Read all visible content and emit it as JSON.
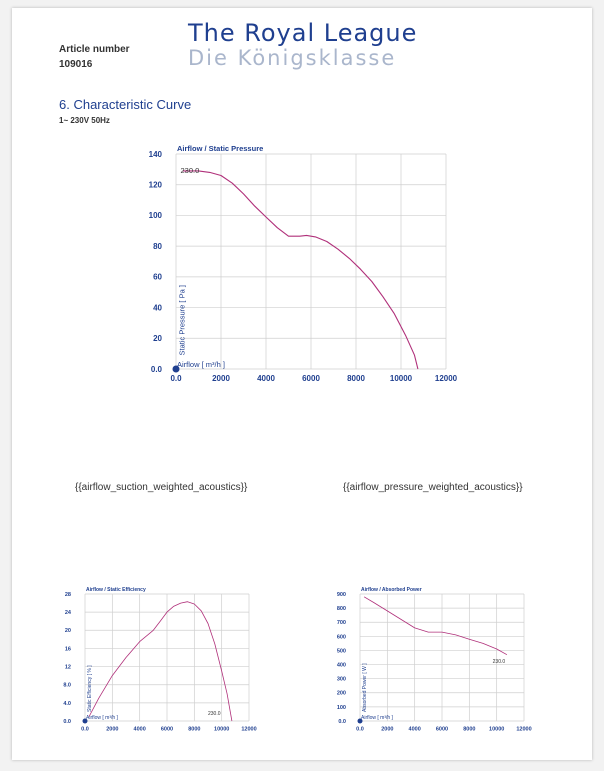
{
  "header": {
    "article_label": "Article number",
    "article_number": "109016",
    "brand_line1": "The Royal League",
    "brand_line2": "Die Königsklasse"
  },
  "section": {
    "title": "6. Characteristic Curve",
    "subtitle": "1~ 230V 50Hz"
  },
  "placeholders": {
    "suction": "{{airflow_suction_weighted_acoustics}}",
    "pressure": "{{airflow_pressure_weighted_acoustics}}"
  },
  "colors": {
    "brand": "#1f3f8f",
    "curve": "#b0307a",
    "grid": "#cfcfcf"
  },
  "chart_data": [
    {
      "type": "line",
      "title": "Airflow / Static Pressure",
      "xlabel": "Airflow [ m³/h ]",
      "ylabel": "Static Pressure [ Pa ]",
      "xlim": [
        0,
        12000
      ],
      "ylim": [
        0,
        140
      ],
      "xticks": [
        "0.0",
        "2000",
        "4000",
        "6000",
        "8000",
        "10000",
        "12000"
      ],
      "yticks": [
        "0.0",
        "20",
        "40",
        "60",
        "80",
        "100",
        "120",
        "140"
      ],
      "grid": true,
      "series": [
        {
          "name": "230.0",
          "x": [
            300,
            1000,
            1500,
            2000,
            2500,
            3000,
            3500,
            4000,
            4500,
            5000,
            5500,
            5800,
            6200,
            6700,
            7200,
            7700,
            8200,
            8700,
            9200,
            9700,
            10200,
            10600,
            10750
          ],
          "y": [
            129,
            129,
            128,
            126,
            121,
            114,
            106,
            99,
            92,
            86.5,
            86.5,
            87,
            86,
            83,
            78,
            72,
            65,
            57,
            47,
            36,
            22,
            9,
            0
          ]
        }
      ]
    },
    {
      "type": "line",
      "title": "Airflow / Static Efficiency",
      "xlabel": "Airflow [ m³/h ]",
      "ylabel": "Static Efficiency [ % ]",
      "xlim": [
        0,
        12000
      ],
      "ylim": [
        0,
        28
      ],
      "xticks": [
        "0.0",
        "2000",
        "4000",
        "6000",
        "8000",
        "10000",
        "12000"
      ],
      "yticks": [
        "0.0",
        "4.0",
        "8.0",
        "12",
        "16",
        "20",
        "24",
        "28"
      ],
      "grid": true,
      "series": [
        {
          "name": "230.0",
          "x": [
            300,
            1000,
            2000,
            3000,
            4000,
            5000,
            5500,
            6000,
            6500,
            7000,
            7500,
            8000,
            8500,
            9000,
            9500,
            10000,
            10400,
            10750
          ],
          "y": [
            1,
            5,
            10,
            14,
            17.5,
            20,
            22,
            24,
            25.3,
            26,
            26.3,
            25.8,
            24.3,
            21.5,
            17,
            11,
            6,
            0
          ]
        }
      ]
    },
    {
      "type": "line",
      "title": "Airflow / Absorbed Power",
      "xlabel": "Airflow [ m³/h ]",
      "ylabel": "Absorbed Power [ W ]",
      "xlim": [
        0,
        12000
      ],
      "ylim": [
        0,
        900
      ],
      "xticks": [
        "0.0",
        "2000",
        "4000",
        "6000",
        "8000",
        "10000",
        "12000"
      ],
      "yticks": [
        "0.0",
        "100",
        "200",
        "300",
        "400",
        "500",
        "600",
        "700",
        "800",
        "900"
      ],
      "grid": true,
      "series": [
        {
          "name": "230.0",
          "x": [
            300,
            1000,
            2000,
            3000,
            4000,
            5000,
            6000,
            7000,
            8000,
            9000,
            10000,
            10750
          ],
          "y": [
            880,
            840,
            780,
            720,
            660,
            630,
            630,
            610,
            580,
            550,
            510,
            470
          ]
        }
      ]
    }
  ]
}
